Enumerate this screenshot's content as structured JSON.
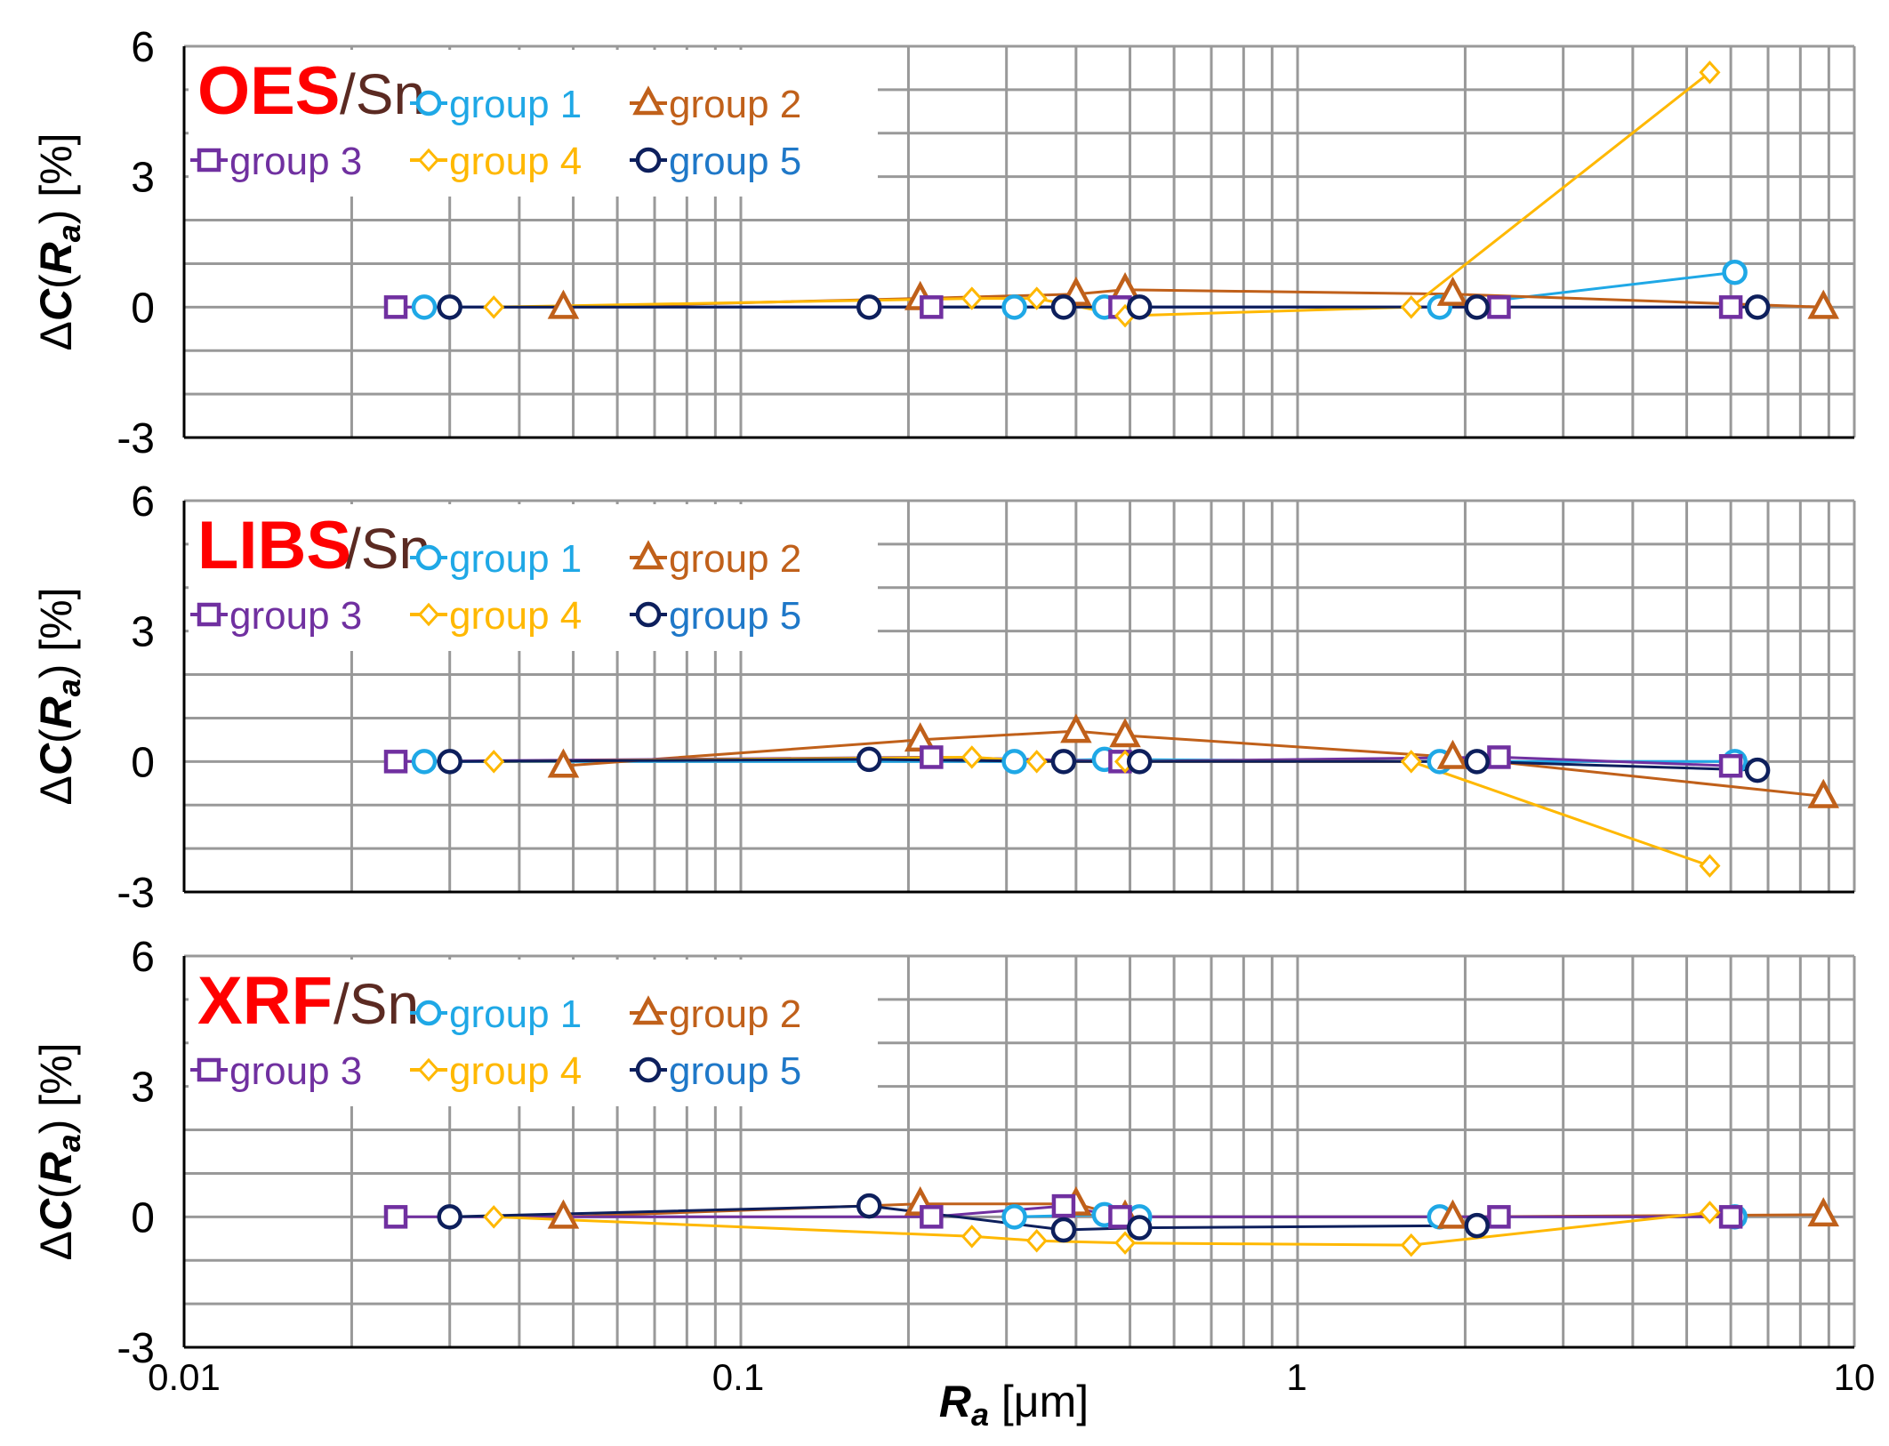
{
  "colors": {
    "group1": "#1FA8E6",
    "group2": "#C0601A",
    "group3": "#7030A0",
    "group4": "#FFB800",
    "group5": "#0D1F5C",
    "method": "#FF0000",
    "element": "#5B2A22",
    "grid": "#999999",
    "label5": "#1F78C8"
  },
  "chart_data": [
    {
      "type": "line",
      "method": "OES",
      "element": "/Sn",
      "xscale": "log",
      "xlim": [
        0.01,
        10
      ],
      "ylim": [
        -3,
        6
      ],
      "yticks": [
        "6",
        "3",
        "0",
        "-3"
      ],
      "ylabel": {
        "delta": "Δ",
        "c": "C",
        "paren_open": "(",
        "r": "R",
        "sub": "a",
        "paren_close": ")",
        "unit": " [%]"
      },
      "grid": true,
      "legend": "top-left",
      "series": [
        {
          "name": "group 1",
          "marker": "circle",
          "x": [
            0.027,
            0.31,
            0.45,
            1.8,
            6.1
          ],
          "y": [
            0.0,
            0.0,
            0.0,
            0.0,
            0.8
          ]
        },
        {
          "name": "group 2",
          "marker": "triangle",
          "x": [
            0.048,
            0.21,
            0.4,
            0.49,
            1.9,
            8.8
          ],
          "y": [
            0.0,
            0.2,
            0.3,
            0.4,
            0.3,
            0.0
          ]
        },
        {
          "name": "group 3",
          "marker": "square",
          "x": [
            0.024,
            0.22,
            0.48,
            2.3,
            6.0
          ],
          "y": [
            0.0,
            0.0,
            0.0,
            0.0,
            0.0
          ]
        },
        {
          "name": "group 4",
          "marker": "diamond",
          "x": [
            0.036,
            0.26,
            0.34,
            0.49,
            1.6,
            5.5
          ],
          "y": [
            0.0,
            0.2,
            0.2,
            -0.2,
            0.0,
            5.4
          ]
        },
        {
          "name": "group 5",
          "marker": "circle",
          "x": [
            0.03,
            0.17,
            0.38,
            0.52,
            2.1,
            6.7
          ],
          "y": [
            0.0,
            0.0,
            0.0,
            0.0,
            0.0,
            0.0
          ]
        }
      ]
    },
    {
      "type": "line",
      "method": "LIBS",
      "element": "/Sn",
      "xscale": "log",
      "xlim": [
        0.01,
        10
      ],
      "ylim": [
        -3,
        6
      ],
      "yticks": [
        "6",
        "3",
        "0",
        "-3"
      ],
      "ylabel": {
        "delta": "Δ",
        "c": "C",
        "paren_open": "(",
        "r": "R",
        "sub": "a",
        "paren_close": ")",
        "unit": " [%]"
      },
      "grid": true,
      "legend": "top-left",
      "series": [
        {
          "name": "group 1",
          "marker": "circle",
          "x": [
            0.027,
            0.31,
            0.45,
            1.8,
            6.1
          ],
          "y": [
            0.0,
            0.0,
            0.05,
            0.0,
            0.0
          ]
        },
        {
          "name": "group 2",
          "marker": "triangle",
          "x": [
            0.048,
            0.21,
            0.4,
            0.49,
            1.9,
            8.8
          ],
          "y": [
            -0.1,
            0.5,
            0.7,
            0.6,
            0.1,
            -0.8
          ]
        },
        {
          "name": "group 3",
          "marker": "square",
          "x": [
            0.024,
            0.22,
            0.48,
            2.3,
            6.0
          ],
          "y": [
            0.0,
            0.1,
            0.0,
            0.1,
            -0.1
          ]
        },
        {
          "name": "group 4",
          "marker": "diamond",
          "x": [
            0.036,
            0.26,
            0.34,
            0.49,
            1.6,
            5.5
          ],
          "y": [
            0.0,
            0.1,
            0.0,
            0.0,
            0.0,
            -2.4
          ]
        },
        {
          "name": "group 5",
          "marker": "circle",
          "x": [
            0.03,
            0.17,
            0.38,
            0.52,
            2.1,
            6.7
          ],
          "y": [
            0.0,
            0.05,
            0.0,
            0.0,
            0.0,
            -0.2
          ]
        }
      ]
    },
    {
      "type": "line",
      "method": "XRF",
      "element": "/Sn",
      "xscale": "log",
      "xlim": [
        0.01,
        10
      ],
      "ylim": [
        -3,
        6
      ],
      "yticks": [
        "6",
        "3",
        "0",
        "-3"
      ],
      "ylabel": {
        "delta": "Δ",
        "c": "C",
        "paren_open": "(",
        "r": "R",
        "sub": "a",
        "paren_close": ")",
        "unit": " [%]"
      },
      "xticks": [
        "0.01",
        "0.1",
        "1",
        "10"
      ],
      "xlabel": {
        "r": "R",
        "sub": "a",
        "unit": " [μm]"
      },
      "grid": true,
      "legend": "top-left",
      "series": [
        {
          "name": "group 1",
          "marker": "circle",
          "x": [
            0.31,
            0.45,
            0.52,
            1.8,
            6.1
          ],
          "y": [
            0.0,
            0.05,
            0.0,
            0.0,
            0.0
          ]
        },
        {
          "name": "group 2",
          "marker": "triangle",
          "x": [
            0.048,
            0.21,
            0.4,
            0.49,
            1.9,
            8.8
          ],
          "y": [
            0.0,
            0.3,
            0.3,
            0.0,
            0.0,
            0.05
          ]
        },
        {
          "name": "group 3",
          "marker": "square",
          "x": [
            0.024,
            0.22,
            0.38,
            0.48,
            2.3,
            6.0
          ],
          "y": [
            0.0,
            0.0,
            0.25,
            0.0,
            0.0,
            0.0
          ]
        },
        {
          "name": "group 4",
          "marker": "diamond",
          "x": [
            0.036,
            0.26,
            0.34,
            0.49,
            1.6,
            5.5
          ],
          "y": [
            0.0,
            -0.45,
            -0.55,
            -0.6,
            -0.65,
            0.1
          ]
        },
        {
          "name": "group 5",
          "marker": "circle",
          "x": [
            0.03,
            0.17,
            0.38,
            0.52,
            2.1
          ],
          "y": [
            0.0,
            0.25,
            -0.3,
            -0.25,
            -0.2
          ]
        }
      ]
    }
  ]
}
